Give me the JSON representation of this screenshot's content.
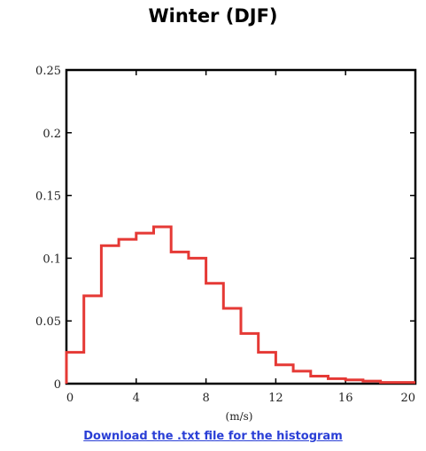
{
  "colors": {
    "line": "#e53935",
    "frame": "#000000",
    "link": "#2a3fd6"
  },
  "link": {
    "download_text": "Download the .txt file for the histogram"
  },
  "chart_data": {
    "type": "line",
    "title": "Winter (DJF)",
    "xlabel": "(m/s)",
    "ylabel": "",
    "xlim": [
      0,
      20
    ],
    "ylim": [
      0,
      0.25
    ],
    "xticks": [
      0,
      4,
      8,
      12,
      16,
      20
    ],
    "xtick_labels": [
      "0",
      "4",
      "8",
      "12",
      "16",
      "20"
    ],
    "yticks": [
      0,
      0.05,
      0.1,
      0.15,
      0.2,
      0.25
    ],
    "ytick_labels": [
      "0",
      "0.05",
      "0.1",
      "0.15",
      "0.2",
      "0.25"
    ],
    "grid": false,
    "legend": "none",
    "series": [
      {
        "style": "step-histogram",
        "bin_edges": [
          0,
          1,
          2,
          3,
          4,
          5,
          6,
          7,
          8,
          9,
          10,
          11,
          12,
          13,
          14,
          15,
          16,
          17,
          18,
          19,
          20
        ],
        "values": [
          0.025,
          0.07,
          0.11,
          0.115,
          0.12,
          0.125,
          0.105,
          0.1,
          0.08,
          0.06,
          0.04,
          0.025,
          0.015,
          0.01,
          0.006,
          0.004,
          0.003,
          0.002,
          0.001,
          0.001
        ]
      }
    ]
  }
}
